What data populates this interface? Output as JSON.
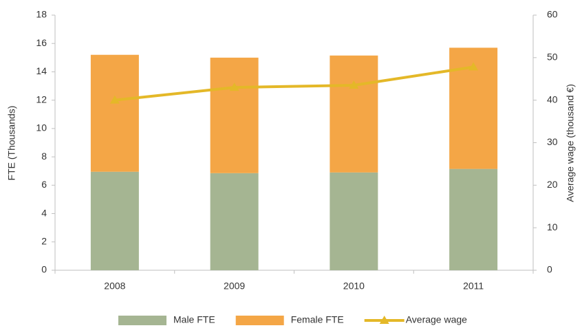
{
  "chart_data": {
    "type": "bar",
    "categories": [
      "2008",
      "2009",
      "2010",
      "2011"
    ],
    "series": [
      {
        "name": "Male FTE",
        "type": "bar",
        "color": "#a5b592",
        "values": [
          6.95,
          6.85,
          6.9,
          7.15
        ]
      },
      {
        "name": "Female FTE",
        "type": "bar",
        "color": "#f4a646",
        "values": [
          8.25,
          8.15,
          8.25,
          8.55
        ]
      },
      {
        "name": "Average wage",
        "type": "line",
        "axis": "y2",
        "color": "#e4b828",
        "values": [
          40,
          43,
          43.5,
          47.8
        ]
      }
    ],
    "stacked": true,
    "y_label": "FTE (Thousands)",
    "y2_label": "Average wage (thousand €)",
    "ylim": [
      0,
      18
    ],
    "yticks": [
      0,
      2,
      4,
      6,
      8,
      10,
      12,
      14,
      16,
      18
    ],
    "y2lim": [
      0,
      60
    ],
    "y2ticks": [
      0,
      10,
      20,
      30,
      40,
      50,
      60
    ],
    "grid": false,
    "legend": "bottom"
  }
}
